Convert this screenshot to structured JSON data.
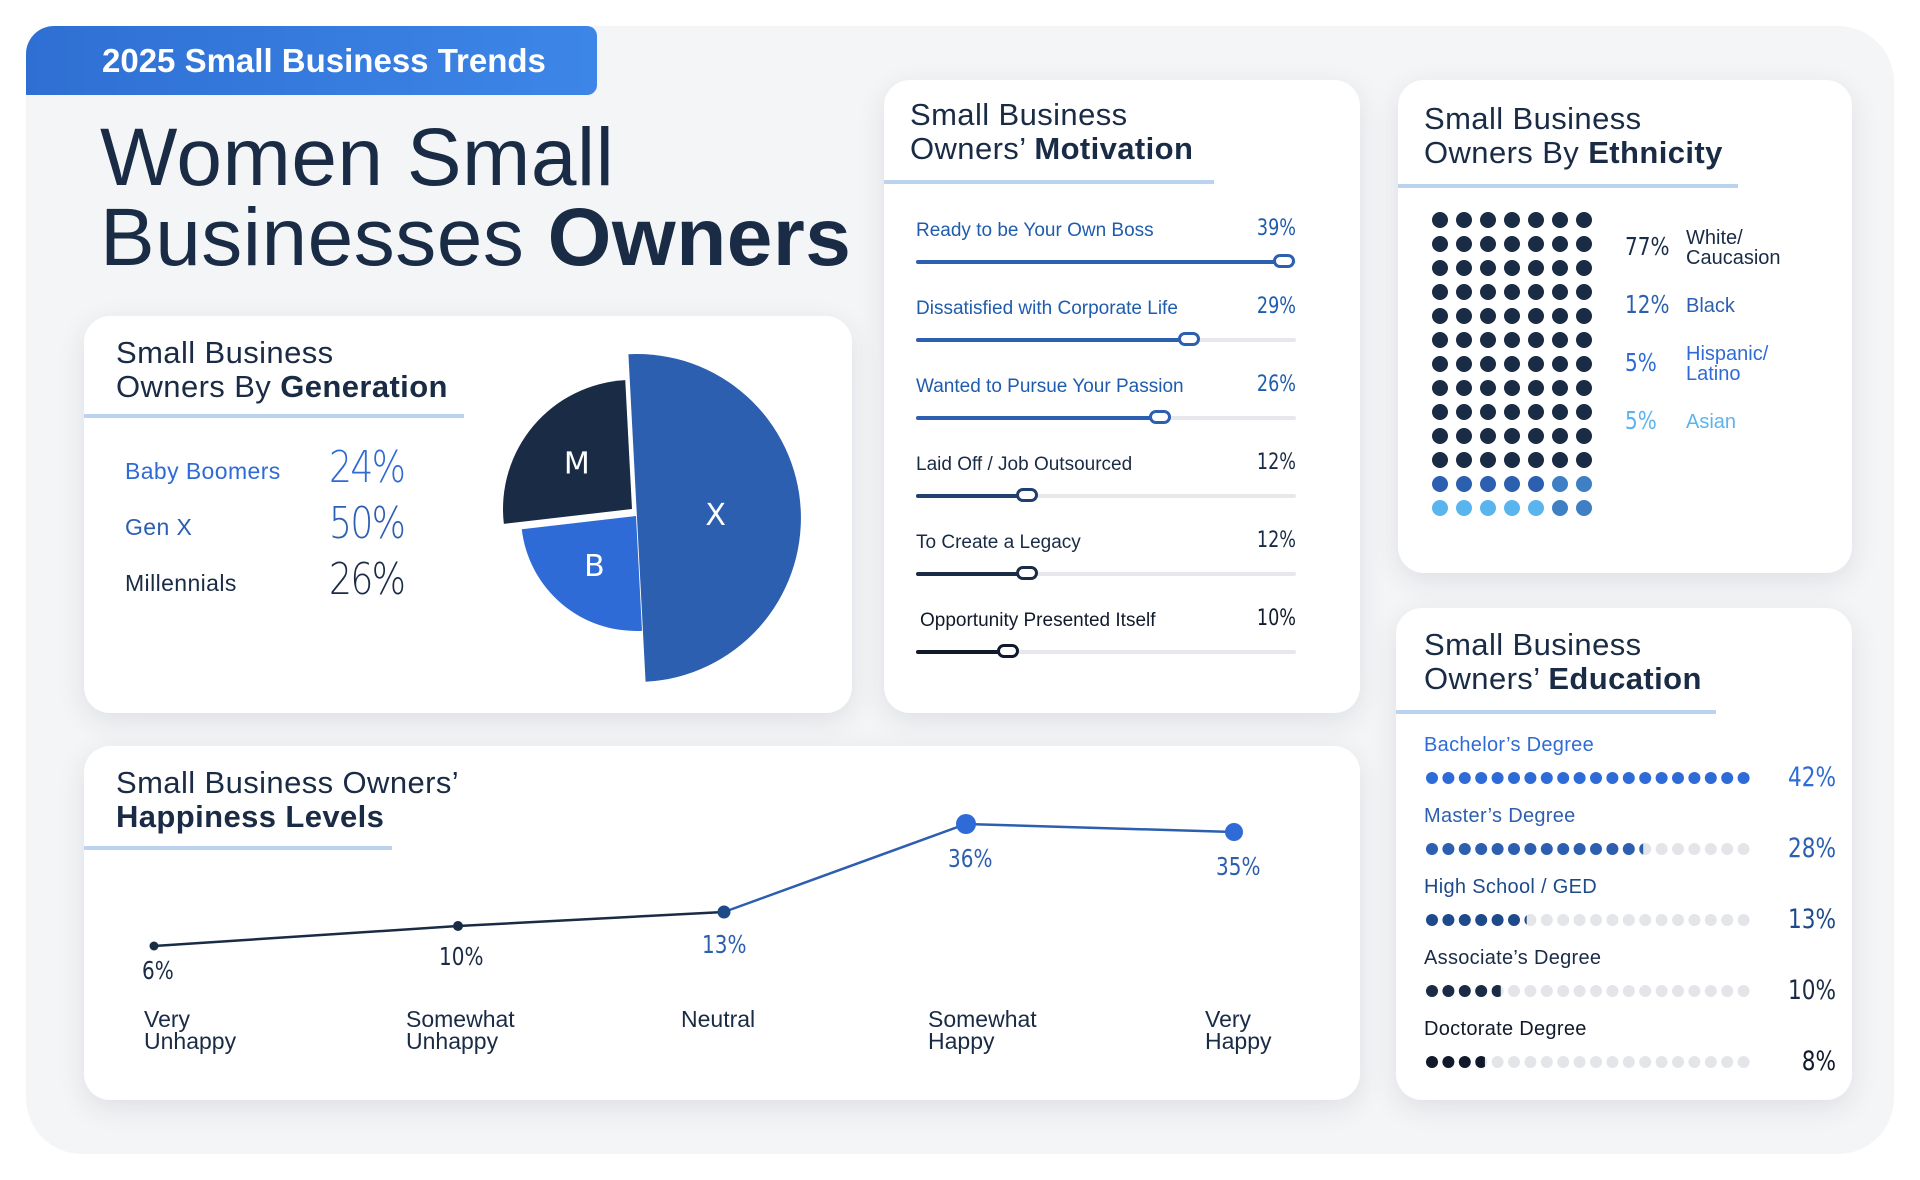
{
  "header": {
    "tag": "2025 Small Business Trends",
    "title_line1": "Women Small",
    "title_line2_regular": "Businesses ",
    "title_line2_bold": "Owners"
  },
  "colors": {
    "navy": "#1a2b45",
    "blue": "#2d5fb0",
    "bright_blue": "#2f6bd6",
    "light_blue": "#5ab4ee",
    "mid_blue": "#3f7fc4",
    "dot_off": "#e3e5e9"
  },
  "generation": {
    "title_line1": "Small Business",
    "title_line2_regular": "Owners By ",
    "title_line2_bold": "Generation"
  },
  "motivation": {
    "title_line1": "Small Business",
    "title_line2_regular": "Owners’ ",
    "title_line2_bold": "Motivation"
  },
  "ethnicity": {
    "title_line1": "Small Business",
    "title_line2_regular": "Owners By ",
    "title_line2_bold": "Ethnicity"
  },
  "education": {
    "title_line1": "Small Business",
    "title_line2_regular": "Owners’ ",
    "title_line2_bold": "Education"
  },
  "happiness": {
    "title_line1": "Small Business Owners’",
    "title_line2_bold": "Happiness Levels"
  },
  "chart_data": [
    {
      "id": "generation",
      "type": "pie",
      "title": "Small Business Owners By Generation",
      "categories": [
        "Baby Boomers",
        "Gen X",
        "Millennials"
      ],
      "values": [
        24,
        50,
        26
      ],
      "value_labels": [
        "24%",
        "50%",
        "26%"
      ],
      "slice_labels": [
        "B",
        "X",
        "M"
      ],
      "unit": "%"
    },
    {
      "id": "motivation",
      "type": "bar",
      "orientation": "horizontal",
      "title": "Small Business Owners’ Motivation",
      "categories": [
        "Ready to be Your Own Boss",
        "Dissatisfied with Corporate Life",
        "Wanted to Pursue Your Passion",
        "Laid Off / Job Outsourced",
        "To Create a Legacy",
        "Opportunity Presented Itself"
      ],
      "values": [
        39,
        29,
        26,
        12,
        12,
        10
      ],
      "value_labels": [
        "39%",
        "29%",
        "26%",
        "12%",
        "12%",
        "10%"
      ],
      "xlim": [
        0,
        40
      ]
    },
    {
      "id": "ethnicity",
      "type": "waffle",
      "title": "Small Business Owners By Ethnicity",
      "categories": [
        "White/ Caucasion",
        "Black",
        "Hispanic/ Latino",
        "Asian"
      ],
      "values": [
        77,
        12,
        5,
        5
      ],
      "value_labels": [
        "77%",
        "12%",
        "5%",
        "5%"
      ],
      "total_dots": 91
    },
    {
      "id": "education",
      "type": "dot-bar",
      "title": "Small Business Owners’ Education",
      "categories": [
        "Bachelor’s Degree",
        "Master’s Degree",
        "High School / GED",
        "Associate’s Degree",
        "Doctorate Degree"
      ],
      "values": [
        42,
        28,
        13,
        10,
        8
      ],
      "value_labels": [
        "42%",
        "28%",
        "13%",
        "10%",
        "8%"
      ],
      "xlim": [
        0,
        42
      ]
    },
    {
      "id": "happiness",
      "type": "line",
      "title": "Small Business Owners’ Happiness Levels",
      "categories": [
        "Very Unhappy",
        "Somewhat Unhappy",
        "Neutral",
        "Somewhat Happy",
        "Very Happy"
      ],
      "category_lines": [
        [
          "Very",
          "Unhappy"
        ],
        [
          "Somewhat",
          "Unhappy"
        ],
        [
          "Neutral",
          ""
        ],
        [
          "Somewhat",
          "Happy"
        ],
        [
          "Very",
          "Happy"
        ]
      ],
      "values": [
        6,
        10,
        13,
        36,
        35
      ],
      "value_labels": [
        "6%",
        "10%",
        "13%",
        "36%",
        "35%"
      ],
      "ylim": [
        0,
        40
      ]
    }
  ]
}
